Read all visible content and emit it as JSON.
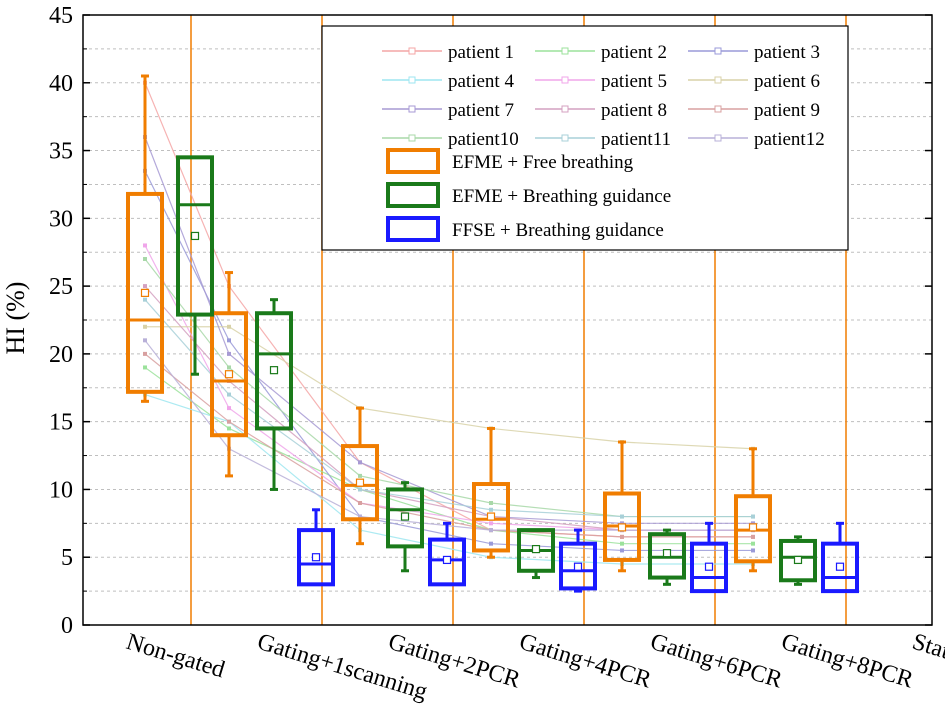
{
  "chart_data": {
    "type": "box",
    "ylabel": "HI (%)",
    "ylim": [
      0,
      45
    ],
    "yticks": [
      0,
      5,
      10,
      15,
      20,
      25,
      30,
      35,
      40,
      45
    ],
    "categories": [
      "Non-gated",
      "Gating+1scanning",
      "Gating+2PCR",
      "Gating+4PCR",
      "Gating+6PCR",
      "Gating+8PCR",
      "Static"
    ],
    "groups": [
      {
        "name": "EFME + Free breathing",
        "color": "#f07d00",
        "boxes": [
          {
            "category": "Non-gated",
            "min": 16.5,
            "q1": 17.2,
            "median": 22.5,
            "q3": 31.8,
            "max": 40.5,
            "mean": 24.5
          },
          {
            "category": "Gating+1scanning",
            "min": 11.0,
            "q1": 14.0,
            "median": 18.0,
            "q3": 23.0,
            "max": 26.0,
            "mean": 18.5
          },
          {
            "category": "Gating+2PCR",
            "min": 6.0,
            "q1": 7.8,
            "median": 10.3,
            "q3": 13.2,
            "max": 16.0,
            "mean": 10.5
          },
          {
            "category": "Gating+4PCR",
            "min": 5.0,
            "q1": 5.5,
            "median": 7.8,
            "q3": 10.4,
            "max": 14.5,
            "mean": 8.0
          },
          {
            "category": "Gating+6PCR",
            "min": 4.0,
            "q1": 4.8,
            "median": 7.3,
            "q3": 9.7,
            "max": 13.5,
            "mean": 7.2
          },
          {
            "category": "Gating+8PCR",
            "min": 4.0,
            "q1": 4.7,
            "median": 7.0,
            "q3": 9.5,
            "max": 13.0,
            "mean": 7.2
          }
        ]
      },
      {
        "name": "EFME + Breathing guidance",
        "color": "#1a7a1a",
        "boxes": [
          {
            "category": "Non-gated",
            "min": 18.5,
            "q1": 22.9,
            "median": 31.0,
            "q3": 34.5,
            "max": 34.5,
            "mean": 28.7
          },
          {
            "category": "Gating+1scanning",
            "min": 10.0,
            "q1": 14.5,
            "median": 20.0,
            "q3": 23.0,
            "max": 24.0,
            "mean": 18.8
          },
          {
            "category": "Gating+2PCR",
            "min": 4.0,
            "q1": 5.8,
            "median": 8.5,
            "q3": 10.0,
            "max": 10.5,
            "mean": 8.0
          },
          {
            "category": "Gating+4PCR",
            "min": 3.5,
            "q1": 4.0,
            "median": 5.5,
            "q3": 7.0,
            "max": 7.0,
            "mean": 5.6
          },
          {
            "category": "Gating+6PCR",
            "min": 3.0,
            "q1": 3.5,
            "median": 5.0,
            "q3": 6.7,
            "max": 7.0,
            "mean": 5.3
          },
          {
            "category": "Gating+8PCR",
            "min": 3.0,
            "q1": 3.3,
            "median": 5.0,
            "q3": 6.2,
            "max": 6.5,
            "mean": 4.8
          }
        ]
      },
      {
        "name": "FFSE + Breathing guidance",
        "color": "#1a1aff",
        "boxes": [
          {
            "category": "Gating+1scanning",
            "min": 3.0,
            "q1": 3.0,
            "median": 4.5,
            "q3": 7.0,
            "max": 8.5,
            "mean": 5.0
          },
          {
            "category": "Gating+2PCR",
            "min": 3.0,
            "q1": 3.0,
            "median": 4.8,
            "q3": 6.3,
            "max": 7.5,
            "mean": 4.8
          },
          {
            "category": "Gating+4PCR",
            "min": 2.5,
            "q1": 2.7,
            "median": 4.0,
            "q3": 6.0,
            "max": 7.0,
            "mean": 4.3
          },
          {
            "category": "Gating+6PCR",
            "min": 2.5,
            "q1": 2.5,
            "median": 3.5,
            "q3": 6.0,
            "max": 7.5,
            "mean": 4.3
          },
          {
            "category": "Gating+8PCR",
            "min": 2.5,
            "q1": 2.5,
            "median": 3.5,
            "q3": 6.0,
            "max": 7.5,
            "mean": 4.3
          }
        ]
      }
    ],
    "patients": [
      {
        "name": "patient 1",
        "color": "#f4a6a6",
        "values": [
          40,
          25,
          12,
          7,
          6.5,
          6.5
        ]
      },
      {
        "name": "patient 2",
        "color": "#9be29b",
        "values": [
          19,
          14.5,
          10,
          7,
          6,
          6
        ]
      },
      {
        "name": "patient 3",
        "color": "#9a9ad8",
        "values": [
          33.5,
          21,
          8,
          6,
          5.5,
          5.5
        ]
      },
      {
        "name": "patient 4",
        "color": "#9ee6f0",
        "values": [
          17,
          15,
          7,
          5,
          4.5,
          4.5
        ]
      },
      {
        "name": "patient 5",
        "color": "#f0a6ea",
        "values": [
          28,
          16,
          9,
          7.5,
          7,
          7
        ]
      },
      {
        "name": "patient 6",
        "color": "#d8d2a8",
        "values": [
          22,
          22,
          16,
          14.5,
          13.5,
          13
        ]
      },
      {
        "name": "patient 7",
        "color": "#a79ad4",
        "values": [
          36,
          20,
          12,
          8,
          7.5,
          7.5
        ]
      },
      {
        "name": "patient 8",
        "color": "#d4a0c0",
        "values": [
          25,
          18,
          10,
          8,
          7,
          7
        ]
      },
      {
        "name": "patient 9",
        "color": "#d8a0a0",
        "values": [
          20,
          15,
          9,
          7,
          6.5,
          6.5
        ]
      },
      {
        "name": "patient10",
        "color": "#a8d8a8",
        "values": [
          27,
          19,
          11,
          9,
          8,
          8
        ]
      },
      {
        "name": "patient11",
        "color": "#a8d0d8",
        "values": [
          24,
          17,
          10,
          8.5,
          8,
          8
        ]
      },
      {
        "name": "patient12",
        "color": "#b8b0d8",
        "values": [
          21,
          13,
          8,
          7,
          7,
          7
        ]
      }
    ]
  }
}
